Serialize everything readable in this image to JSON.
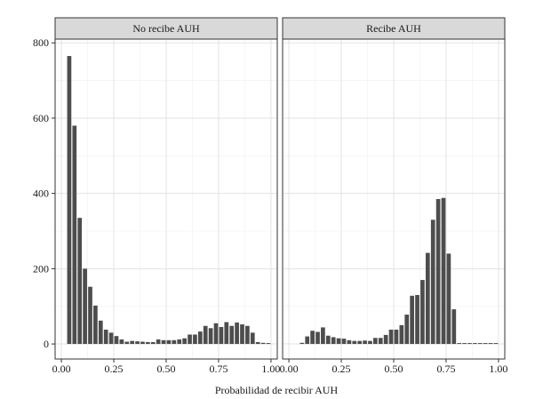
{
  "chart_data": {
    "type": "bar",
    "title": "",
    "xlabel": "Probabilidad de recibir AUH",
    "ylabel": "",
    "xlim": [
      -0.03,
      1.03
    ],
    "ylim": [
      -40,
      810
    ],
    "x_ticks": [
      "0.00",
      "0.25",
      "0.50",
      "0.75",
      "1.00"
    ],
    "y_ticks": [
      "0",
      "200",
      "400",
      "600",
      "800"
    ],
    "grid": true,
    "bin_width": 0.025,
    "panels": [
      {
        "name": "No recibe AUH",
        "bin_centers": [
          0.0375,
          0.0625,
          0.0875,
          0.1125,
          0.1375,
          0.1625,
          0.1875,
          0.2125,
          0.2375,
          0.2625,
          0.2875,
          0.3125,
          0.3375,
          0.3625,
          0.3875,
          0.4125,
          0.4375,
          0.4625,
          0.4875,
          0.5125,
          0.5375,
          0.5625,
          0.5875,
          0.6125,
          0.6375,
          0.6625,
          0.6875,
          0.7125,
          0.7375,
          0.7625,
          0.7875,
          0.8125,
          0.8375,
          0.8625,
          0.8875,
          0.9125,
          0.9375,
          0.9625,
          0.9875
        ],
        "values": [
          765,
          580,
          335,
          200,
          152,
          102,
          62,
          38,
          30,
          21,
          12,
          6,
          8,
          7,
          6,
          5,
          5,
          12,
          10,
          10,
          10,
          12,
          15,
          25,
          25,
          33,
          48,
          42,
          55,
          45,
          58,
          48,
          57,
          52,
          48,
          30,
          5,
          3,
          1
        ]
      },
      {
        "name": "Recibe AUH",
        "bin_centers": [
          0.0625,
          0.0875,
          0.1125,
          0.1375,
          0.1625,
          0.1875,
          0.2125,
          0.2375,
          0.2625,
          0.2875,
          0.3125,
          0.3375,
          0.3625,
          0.3875,
          0.4125,
          0.4375,
          0.4625,
          0.4875,
          0.5125,
          0.5375,
          0.5625,
          0.5875,
          0.6125,
          0.6375,
          0.6625,
          0.6875,
          0.7125,
          0.7375,
          0.7625,
          0.7875,
          0.8125,
          0.8375,
          0.8625,
          0.8875,
          0.9125,
          0.9375,
          0.9625,
          0.9875
        ],
        "values": [
          3,
          20,
          35,
          32,
          44,
          22,
          18,
          15,
          14,
          10,
          8,
          8,
          9,
          8,
          16,
          16,
          24,
          38,
          38,
          50,
          78,
          128,
          130,
          170,
          242,
          330,
          385,
          388,
          240,
          92,
          0,
          0,
          0,
          0,
          0,
          0,
          0,
          0
        ]
      }
    ]
  }
}
